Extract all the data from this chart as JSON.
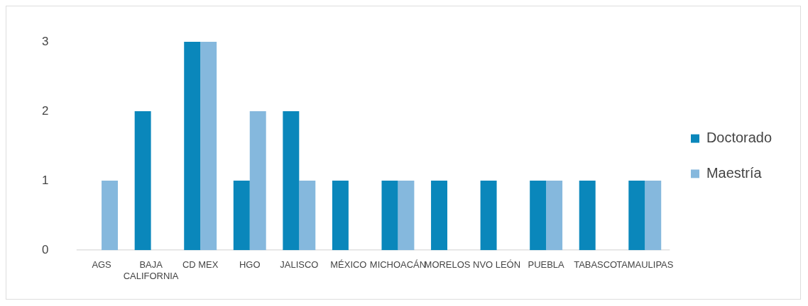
{
  "chart_data": {
    "type": "bar",
    "categories": [
      "AGS",
      "BAJA CALIFORNIA",
      "CD MEX",
      "HGO",
      "JALISCO",
      "MÉXICO",
      "MICHOACÁN",
      "MORELOS",
      "NVO LEÓN",
      "PUEBLA",
      "TABASCO",
      "TAMAULIPAS"
    ],
    "series": [
      {
        "name": "Doctorado",
        "color": "#0a87bb",
        "values": [
          0,
          2,
          3,
          1,
          2,
          1,
          1,
          1,
          1,
          1,
          1,
          1
        ]
      },
      {
        "name": "Maestría",
        "color": "#85b8dd",
        "values": [
          1,
          0,
          3,
          2,
          1,
          0,
          1,
          0,
          0,
          1,
          0,
          1
        ]
      }
    ],
    "ylim": [
      0,
      3
    ],
    "yticks": [
      0,
      1,
      2,
      3
    ],
    "grid": false,
    "legend": "right"
  }
}
